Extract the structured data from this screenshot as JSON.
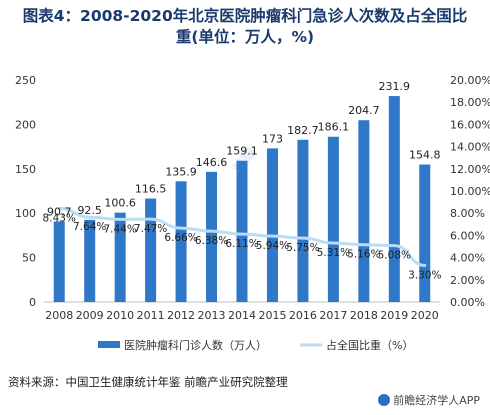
{
  "title_lines": [
    "图表4：2008-2020年北京医院肿瘤科门急诊人次数及占全国比",
    "重(单位：万人，%)"
  ],
  "source": "资料来源：中国卫生健康统计年鉴 前瞻产业研究院整理",
  "brand": "前瞻经济学人APP",
  "chart_data": {
    "type": "bar+line",
    "categories": [
      "2008",
      "2009",
      "2010",
      "2011",
      "2012",
      "2013",
      "2014",
      "2015",
      "2016",
      "2017",
      "2018",
      "2019",
      "2020"
    ],
    "series": [
      {
        "name": "医院肿瘤科门诊人数（万人）",
        "type": "bar",
        "axis": "left",
        "values": [
          90.7,
          92.5,
          100.6,
          116.5,
          135.9,
          146.6,
          159.1,
          173,
          182.7,
          186.1,
          204.7,
          231.9,
          154.8
        ],
        "labels": [
          "90.7",
          "92.5",
          "100.6",
          "116.5",
          "135.9",
          "146.6",
          "159.1",
          "173",
          "182.7",
          "186.1",
          "204.7",
          "231.9",
          "154.8"
        ]
      },
      {
        "name": "占全国比重（%）",
        "type": "line",
        "axis": "right",
        "values": [
          8.43,
          7.64,
          7.44,
          7.47,
          6.66,
          6.38,
          6.11,
          5.94,
          5.75,
          5.31,
          5.16,
          5.08,
          3.3
        ],
        "labels": [
          "8.43%",
          "7.64%",
          "7.44%",
          "7.47%",
          "6.66%",
          "6.38%",
          "6.11%",
          "5.94%",
          "5.75%",
          "5.31%",
          "5.16%",
          "5.08%",
          "3.30%"
        ]
      }
    ],
    "y_left": {
      "min": 0,
      "max": 250,
      "ticks": [
        "0",
        "50",
        "100",
        "150",
        "200",
        "250"
      ]
    },
    "y_right": {
      "min": 0,
      "max": 20,
      "ticks": [
        "0.00%",
        "2.00%",
        "4.00%",
        "6.00%",
        "8.00%",
        "10.00%",
        "12.00%",
        "14.00%",
        "16.00%",
        "18.00%",
        "20.00%"
      ]
    },
    "legend_position": "bottom",
    "colors": {
      "bar": "#2e77c9",
      "line": "#bcdcf1"
    }
  }
}
